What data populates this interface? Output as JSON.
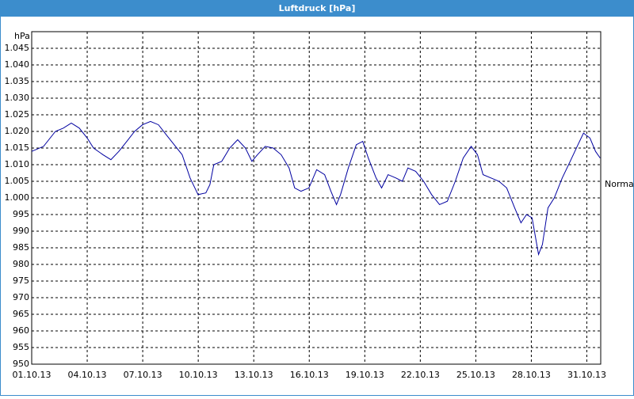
{
  "chart_data": {
    "type": "line",
    "title": "Luftdruck [hPa]",
    "y_label": "hPa",
    "annotation": "Normal",
    "x": [
      1.0,
      1.64,
      2.28,
      2.71,
      3.14,
      3.57,
      4.0,
      4.34,
      4.85,
      5.28,
      5.71,
      6.14,
      6.56,
      6.99,
      7.42,
      7.85,
      8.27,
      8.7,
      9.13,
      9.56,
      9.99,
      10.41,
      10.63,
      10.84,
      11.27,
      11.7,
      12.13,
      12.55,
      12.9,
      13.2,
      13.62,
      14.05,
      14.48,
      14.91,
      15.21,
      15.55,
      15.98,
      16.4,
      16.83,
      17.17,
      17.47,
      17.69,
      18.11,
      18.54,
      18.89,
      19.19,
      19.61,
      19.91,
      20.26,
      20.68,
      21.03,
      21.33,
      21.75,
      22.18,
      22.61,
      23.04,
      23.46,
      23.89,
      24.32,
      24.75,
      25.09,
      25.39,
      25.82,
      26.25,
      26.67,
      27.1,
      27.44,
      27.74,
      28.04,
      28.39,
      28.6,
      28.9,
      29.24,
      29.67,
      30.1,
      30.52,
      30.82,
      31.17,
      31.47,
      31.72
    ],
    "series": [
      {
        "color": "#0000a0",
        "values": [
          1014,
          1015.5,
          1020,
          1021,
          1022.5,
          1021,
          1018,
          1015,
          1013,
          1011.5,
          1014,
          1017,
          1020,
          1022,
          1023,
          1022,
          1019,
          1016,
          1013,
          1006,
          1001,
          1001.5,
          1004,
          1010,
          1011,
          1015,
          1017.5,
          1015,
          1011,
          1013,
          1015.5,
          1015,
          1013,
          1009,
          1003,
          1002,
          1003,
          1008.5,
          1007,
          1002,
          998,
          1001,
          1009,
          1016,
          1017,
          1012,
          1006,
          1003,
          1007,
          1006,
          1005,
          1009,
          1008,
          1005,
          1001,
          998,
          999,
          1005,
          1012,
          1015.5,
          1013,
          1007,
          1006,
          1005,
          1003,
          997,
          992.5,
          995,
          994,
          983,
          986,
          997,
          1000,
          1006,
          1011,
          1016,
          1019.5,
          1018,
          1014,
          1012
        ]
      }
    ],
    "xlim": [
      1,
      31.75
    ],
    "xticks": [
      {
        "value": 1,
        "label": "01.10.13"
      },
      {
        "value": 4,
        "label": "04.10.13"
      },
      {
        "value": 7,
        "label": "07.10.13"
      },
      {
        "value": 10,
        "label": "10.10.13"
      },
      {
        "value": 13,
        "label": "13.10.13"
      },
      {
        "value": 16,
        "label": "16.10.13"
      },
      {
        "value": 19,
        "label": "19.10.13"
      },
      {
        "value": 22,
        "label": "22.10.13"
      },
      {
        "value": 25,
        "label": "25.10.13"
      },
      {
        "value": 28,
        "label": "28.10.13"
      },
      {
        "value": 31,
        "label": "31.10.13"
      }
    ],
    "ylim": [
      950,
      1050
    ],
    "yticks": [
      950,
      955,
      960,
      965,
      970,
      975,
      980,
      985,
      990,
      995,
      {
        "value": 1000,
        "label": "1.000"
      },
      {
        "value": 1005,
        "label": "1.005"
      },
      {
        "value": 1010,
        "label": "1.010"
      },
      {
        "value": 1015,
        "label": "1.015"
      },
      {
        "value": 1020,
        "label": "1.020"
      },
      {
        "value": 1025,
        "label": "1.025"
      },
      {
        "value": 1030,
        "label": "1.030"
      },
      {
        "value": 1035,
        "label": "1.035"
      },
      {
        "value": 1040,
        "label": "1.040"
      },
      {
        "value": 1045,
        "label": "1.045"
      }
    ],
    "grid": true
  }
}
